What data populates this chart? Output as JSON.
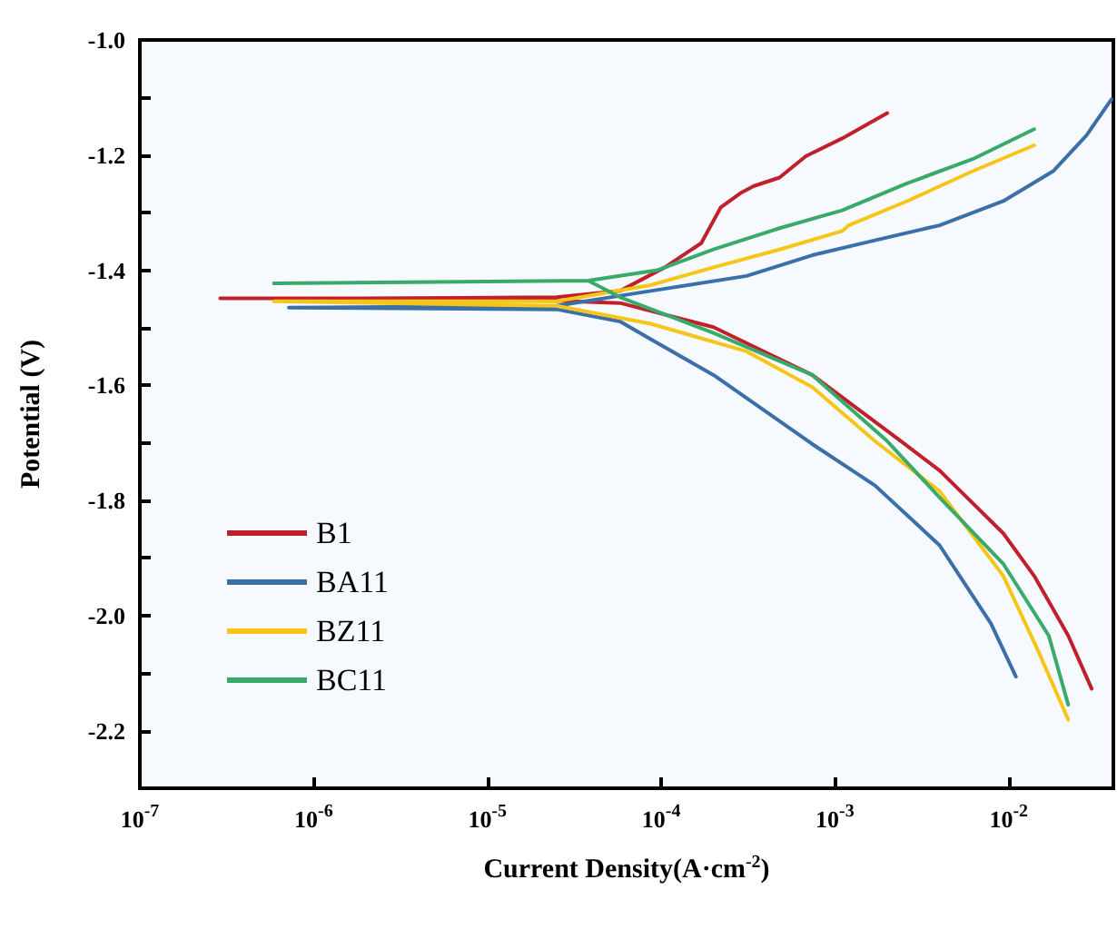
{
  "chart_data": {
    "type": "line",
    "xlabel": "Current Density(A·cm$^{-2}$)",
    "ylabel": "Potential (V)",
    "log": "x",
    "xlim": [
      1e-07,
      0.04
    ],
    "ylim": [
      -2.3,
      -1.0
    ],
    "xticks": [
      {
        "value": 1e-07,
        "label": "10$^{-7}$"
      },
      {
        "value": 1e-06,
        "label": "10$^{-6}$"
      },
      {
        "value": 1e-05,
        "label": "10$^{-5}$"
      },
      {
        "value": 0.0001,
        "label": "10$^{-4}$"
      },
      {
        "value": 0.001,
        "label": "10$^{-3}$"
      },
      {
        "value": 0.01,
        "label": "10$^{-2}$"
      }
    ],
    "yticks": [
      {
        "value": -2.2,
        "label": "-2.2"
      },
      {
        "value": -2.1,
        "label": null
      },
      {
        "value": -2.0,
        "label": "-2.0"
      },
      {
        "value": -1.9,
        "label": null
      },
      {
        "value": -1.8,
        "label": "-1.8"
      },
      {
        "value": -1.7,
        "label": null
      },
      {
        "value": -1.6,
        "label": "-1.6"
      },
      {
        "value": -1.5,
        "label": null
      },
      {
        "value": -1.4,
        "label": "-1.4"
      },
      {
        "value": -1.3,
        "label": null
      },
      {
        "value": -1.2,
        "label": "-1.2"
      },
      {
        "value": -1.1,
        "label": null
      },
      {
        "value": -1.0,
        "label": "-1.0"
      }
    ],
    "grid": false,
    "legend": "left",
    "marker": "none",
    "line_style": "solid",
    "series": [
      {
        "name": "B1",
        "color": "#c0202a",
        "x": [
          0.03,
          0.022,
          0.014,
          0.0093,
          0.004,
          0.0024,
          0.00074,
          0.0002,
          5.8e-05,
          1e-05,
          2.9e-07,
          1.9e-06,
          2.5e-05,
          5.8e-05,
          0.000105,
          0.00017,
          0.00022,
          0.00029,
          0.00034,
          0.00048,
          0.00068,
          0.0011,
          0.002
        ],
        "values": [
          -2.127,
          -2.035,
          -1.931,
          -1.857,
          -1.748,
          -1.697,
          -1.582,
          -1.499,
          -1.457,
          -1.449,
          -1.449,
          -1.449,
          -1.447,
          -1.436,
          -1.395,
          -1.353,
          -1.291,
          -1.265,
          -1.254,
          -1.239,
          -1.202,
          -1.171,
          -1.127
        ]
      },
      {
        "name": "BA11",
        "color": "#3a6fa8",
        "x": [
          0.011,
          0.0079,
          0.004,
          0.0017,
          0.00074,
          0.0002,
          8.7e-05,
          5.8e-05,
          2.5e-05,
          7.2e-07,
          2.5e-05,
          8.7e-05,
          0.00031,
          0.00074,
          0.0017,
          0.004,
          0.0093,
          0.018,
          0.028,
          0.039
        ],
        "values": [
          -2.106,
          -2.014,
          -1.878,
          -1.774,
          -1.702,
          -1.582,
          -1.52,
          -1.489,
          -1.468,
          -1.465,
          -1.462,
          -1.436,
          -1.41,
          -1.374,
          -1.348,
          -1.322,
          -1.28,
          -1.228,
          -1.166,
          -1.103
        ]
      },
      {
        "name": "BZ11",
        "color": "#f5c518",
        "x": [
          0.022,
          0.015,
          0.0093,
          0.004,
          0.0017,
          0.00074,
          0.00031,
          8.7e-05,
          2.5e-05,
          5.9e-07,
          2.5e-05,
          8.7e-05,
          0.0002,
          0.00048,
          0.0011,
          0.0012,
          0.0026,
          0.0062,
          0.014
        ],
        "values": [
          -2.181,
          -2.066,
          -1.931,
          -1.784,
          -1.697,
          -1.603,
          -1.541,
          -1.493,
          -1.462,
          -1.454,
          -1.454,
          -1.426,
          -1.395,
          -1.364,
          -1.332,
          -1.322,
          -1.28,
          -1.228,
          -1.183
        ]
      },
      {
        "name": "BC11",
        "color": "#3aaa6a",
        "x": [
          0.022,
          0.017,
          0.0093,
          0.004,
          0.002,
          0.00074,
          0.0002,
          5.8e-05,
          3.8e-05,
          5.9e-07,
          3.8e-05,
          9.5e-05,
          0.0002,
          0.00048,
          0.0011,
          0.0026,
          0.0062,
          0.014
        ],
        "values": [
          -2.155,
          -2.035,
          -1.91,
          -1.795,
          -1.697,
          -1.582,
          -1.509,
          -1.447,
          -1.418,
          -1.423,
          -1.418,
          -1.4,
          -1.364,
          -1.327,
          -1.296,
          -1.249,
          -1.207,
          -1.155
        ]
      }
    ]
  }
}
